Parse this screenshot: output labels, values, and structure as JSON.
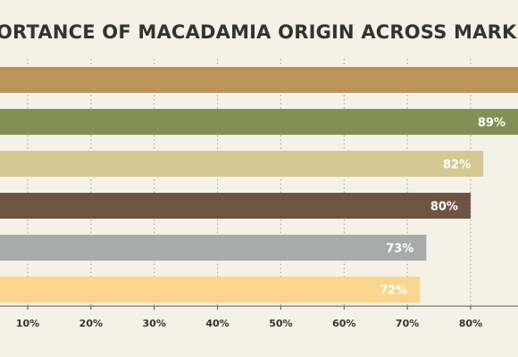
{
  "chart_data": {
    "type": "bar",
    "orientation": "horizontal",
    "title": "ORTANCE OF MACADAMIA ORIGIN ACROSS MARK",
    "xlabel": "",
    "ylabel": "",
    "xlim": [
      4,
      88
    ],
    "xticks": [
      10,
      20,
      30,
      40,
      50,
      60,
      70,
      80
    ],
    "xtick_labels": [
      "10%",
      "20%",
      "30%",
      "40%",
      "50%",
      "60%",
      "70%",
      "80%"
    ],
    "grid": "vertical-dotted",
    "legend": "none",
    "bars": [
      {
        "value": 92,
        "label": "",
        "color": "#bb9457"
      },
      {
        "value": 89,
        "label": "89%",
        "color": "#829055"
      },
      {
        "value": 82,
        "label": "82%",
        "color": "#d3c893"
      },
      {
        "value": 80,
        "label": "80%",
        "color": "#6f5443"
      },
      {
        "value": 73,
        "label": "73%",
        "color": "#a9aaaa"
      },
      {
        "value": 72,
        "label": "72%",
        "color": "#fbd58c"
      }
    ],
    "colors": {
      "background": "#f5f1e6",
      "text": "#333333",
      "grid": "#999999",
      "axis": "#555555",
      "data_label": "#ffffff"
    }
  }
}
